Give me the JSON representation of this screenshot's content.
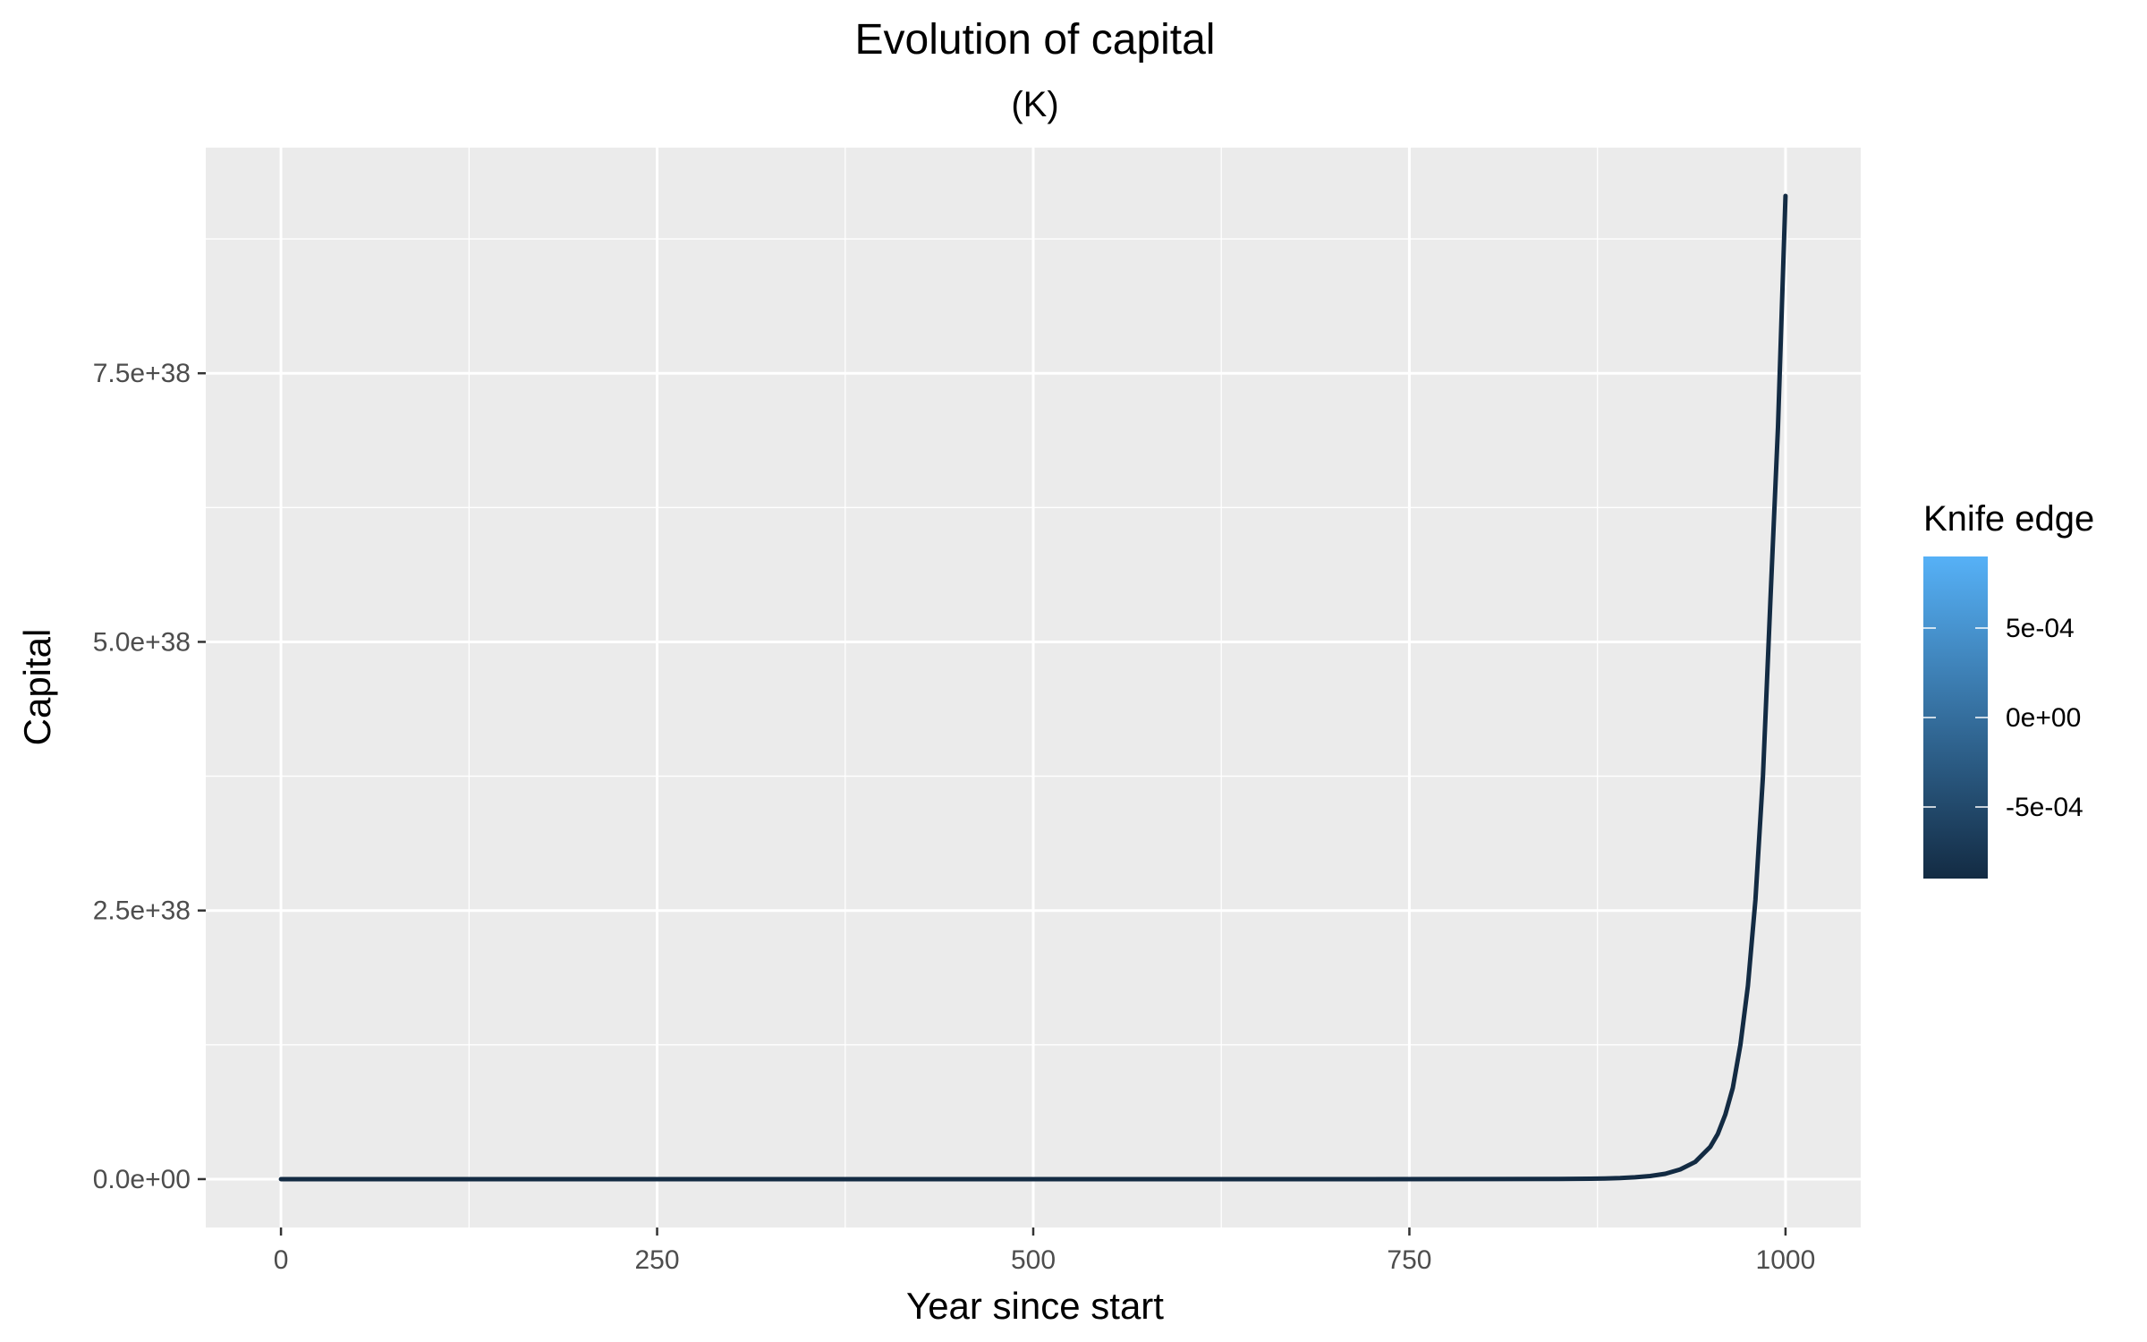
{
  "chart_data": {
    "type": "line",
    "title": "Evolution of  capital",
    "subtitle": "(K)",
    "xlabel": "Year since start",
    "ylabel": "Capital",
    "xlim": [
      -50,
      1050
    ],
    "ylim": [
      -4.5e+37,
      9.6e+38
    ],
    "x_ticks": [
      0,
      250,
      500,
      750,
      1000
    ],
    "x_tick_labels": [
      "0",
      "250",
      "500",
      "750",
      "1000"
    ],
    "y_ticks": [
      0,
      2.5e+38,
      5e+38,
      7.5e+38
    ],
    "y_tick_labels": [
      "0.0e+00",
      "2.5e+38",
      "5.0e+38",
      "7.5e+38"
    ],
    "grid": true,
    "background": "#ebebeb",
    "grid_color": "#ffffff",
    "series": [
      {
        "color": "#132b43",
        "x": [
          0,
          100,
          200,
          300,
          400,
          500,
          600,
          700,
          800,
          850,
          870,
          880,
          890,
          900,
          910,
          920,
          930,
          940,
          950,
          955,
          960,
          965,
          970,
          975,
          980,
          985,
          990,
          995,
          1000
        ],
        "y": [
          0,
          0,
          0,
          0,
          0,
          0,
          0,
          0,
          5e+34,
          1.5e+35,
          3.5e+35,
          6e+35,
          1e+36,
          1.7e+36,
          2.9e+36,
          5e+36,
          9e+36,
          1.6e+37,
          3e+37,
          4.2e+37,
          6e+37,
          8.5e+37,
          1.25e+38,
          1.8e+38,
          2.6e+38,
          3.75e+38,
          5.4e+38,
          7e+38,
          9.15e+38
        ]
      }
    ],
    "legend": {
      "title": "Knife edge",
      "placement": "right",
      "type": "colorbar",
      "range": [
        -0.0009,
        0.0009
      ],
      "low_color": "#132b43",
      "high_color": "#56b1f7",
      "breaks": [
        0.0005,
        0,
        -0.0005
      ],
      "break_labels": [
        "5e-04",
        "0e+00",
        "-5e-04"
      ]
    }
  }
}
